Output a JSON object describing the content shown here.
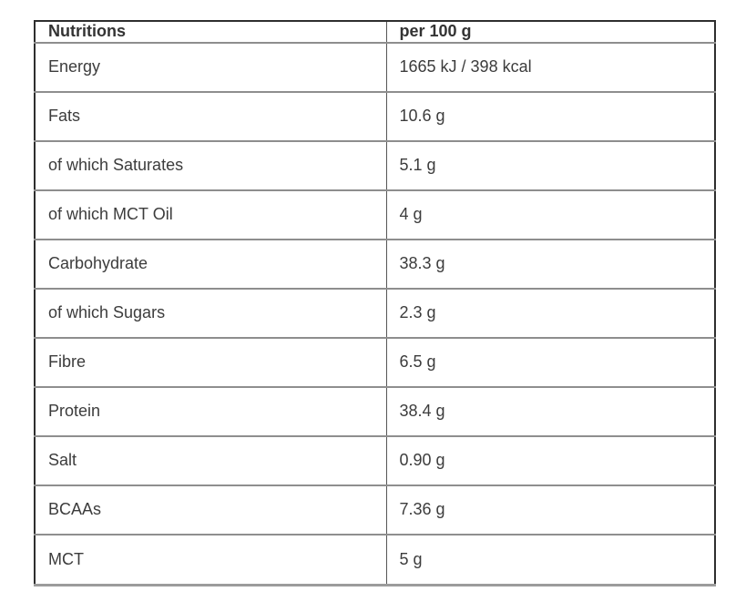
{
  "table": {
    "columns": [
      {
        "label": "Nutritions"
      },
      {
        "label": "per 100 g"
      }
    ],
    "rows": [
      {
        "nutrient": "Energy",
        "value": "1665 kJ / 398 kcal"
      },
      {
        "nutrient": "Fats",
        "value": "10.6 g"
      },
      {
        "nutrient": "of which Saturates",
        "value": "5.1 g"
      },
      {
        "nutrient": "of which MCT Oil",
        "value": "4 g"
      },
      {
        "nutrient": "Carbohydrate",
        "value": "38.3 g"
      },
      {
        "nutrient": "of which Sugars",
        "value": "2.3 g"
      },
      {
        "nutrient": "Fibre",
        "value": "6.5 g"
      },
      {
        "nutrient": "Protein",
        "value": "38.4 g"
      },
      {
        "nutrient": "Salt",
        "value": "0.90 g"
      },
      {
        "nutrient": "BCAAs",
        "value": "7.36 g"
      },
      {
        "nutrient": "MCT",
        "value": "5 g"
      }
    ]
  },
  "colors": {
    "background": "#ffffff",
    "outer_border": "#2e2e2e",
    "bottom_border": "#9c9c9c",
    "row_divider": "#8e8e8e",
    "column_divider": "#555555",
    "text": "#3c3c3c",
    "header_text": "#333333"
  }
}
